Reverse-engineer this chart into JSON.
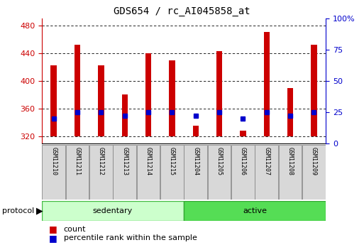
{
  "title": "GDS654 / rc_AI045858_at",
  "samples": [
    "GSM11210",
    "GSM11211",
    "GSM11212",
    "GSM11213",
    "GSM11214",
    "GSM11215",
    "GSM11204",
    "GSM11205",
    "GSM11206",
    "GSM11207",
    "GSM11208",
    "GSM11209"
  ],
  "counts": [
    422,
    452,
    422,
    380,
    440,
    430,
    335,
    443,
    328,
    470,
    390,
    452
  ],
  "percentiles": [
    20,
    25,
    25,
    22,
    25,
    25,
    22,
    25,
    20,
    25,
    22,
    25
  ],
  "baseline": 320,
  "ylim_left": [
    310,
    490
  ],
  "ylim_right": [
    0,
    100
  ],
  "yticks_left": [
    320,
    360,
    400,
    440,
    480
  ],
  "yticks_right": [
    0,
    25,
    50,
    75,
    100
  ],
  "groups": [
    {
      "label": "sedentary",
      "indices": [
        0,
        1,
        2,
        3,
        4,
        5
      ],
      "color": "#ccffcc",
      "border": "#44bb44"
    },
    {
      "label": "active",
      "indices": [
        6,
        7,
        8,
        9,
        10,
        11
      ],
      "color": "#55dd55",
      "border": "#33aa33"
    }
  ],
  "bar_color": "#cc0000",
  "dot_color": "#0000cc",
  "title_fontsize": 10,
  "tick_fontsize": 8,
  "sample_fontsize": 6,
  "background_color": "#ffffff",
  "left_tick_color": "#cc0000",
  "right_tick_color": "#0000cc",
  "bar_width": 0.25
}
